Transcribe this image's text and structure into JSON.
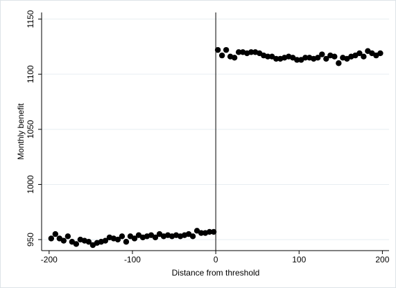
{
  "chart_data": {
    "type": "scatter",
    "xlabel": "Distance from threshold",
    "ylabel": "Monthly benefit",
    "x": [
      -197.5,
      -192.5,
      -187.5,
      -182.5,
      -177.5,
      -172.5,
      -167.5,
      -162.5,
      -157.5,
      -152.5,
      -147.5,
      -142.5,
      -137.5,
      -132.5,
      -127.5,
      -122.5,
      -117.5,
      -112.5,
      -107.5,
      -102.5,
      -97.5,
      -92.5,
      -87.5,
      -82.5,
      -77.5,
      -72.5,
      -67.5,
      -62.5,
      -57.5,
      -52.5,
      -47.5,
      -42.5,
      -37.5,
      -32.5,
      -27.5,
      -22.5,
      -17.5,
      -12.5,
      -7.5,
      -2.5,
      2.5,
      7.5,
      12.5,
      17.5,
      22.5,
      27.5,
      32.5,
      37.5,
      42.5,
      47.5,
      52.5,
      57.5,
      62.5,
      67.5,
      72.5,
      77.5,
      82.5,
      87.5,
      92.5,
      97.5,
      102.5,
      107.5,
      112.5,
      117.5,
      122.5,
      127.5,
      132.5,
      137.5,
      142.5,
      147.5,
      152.5,
      157.5,
      162.5,
      167.5,
      172.5,
      177.5,
      182.5,
      187.5,
      192.5,
      197.5
    ],
    "series": [
      {
        "color": "#000000",
        "values": [
          951,
          955,
          951,
          949,
          953,
          948,
          946,
          950,
          949,
          948,
          945,
          947,
          948,
          949,
          952,
          951,
          950,
          953,
          948,
          953,
          951,
          954,
          952,
          953,
          954,
          952,
          955,
          953,
          954,
          953,
          954,
          953,
          954,
          955,
          953,
          958,
          956,
          956,
          957,
          957,
          1122,
          1117,
          1122,
          1116,
          1115,
          1120,
          1120,
          1119,
          1120,
          1120,
          1119,
          1117,
          1116,
          1116,
          1114,
          1114,
          1115,
          1116,
          1115,
          1113,
          1113,
          1115,
          1115,
          1114,
          1115,
          1118,
          1114,
          1117,
          1116,
          1110,
          1115,
          1114,
          1116,
          1117,
          1119,
          1116,
          1121,
          1119,
          1117,
          1119
        ]
      }
    ],
    "vline": 0,
    "xlim": [
      -209,
      208
    ],
    "ylim": [
      940,
      1156
    ],
    "xticks": [
      -200,
      -100,
      0,
      100,
      200
    ],
    "yticks": [
      950,
      1000,
      1050,
      1100,
      1150
    ],
    "grid": true
  }
}
